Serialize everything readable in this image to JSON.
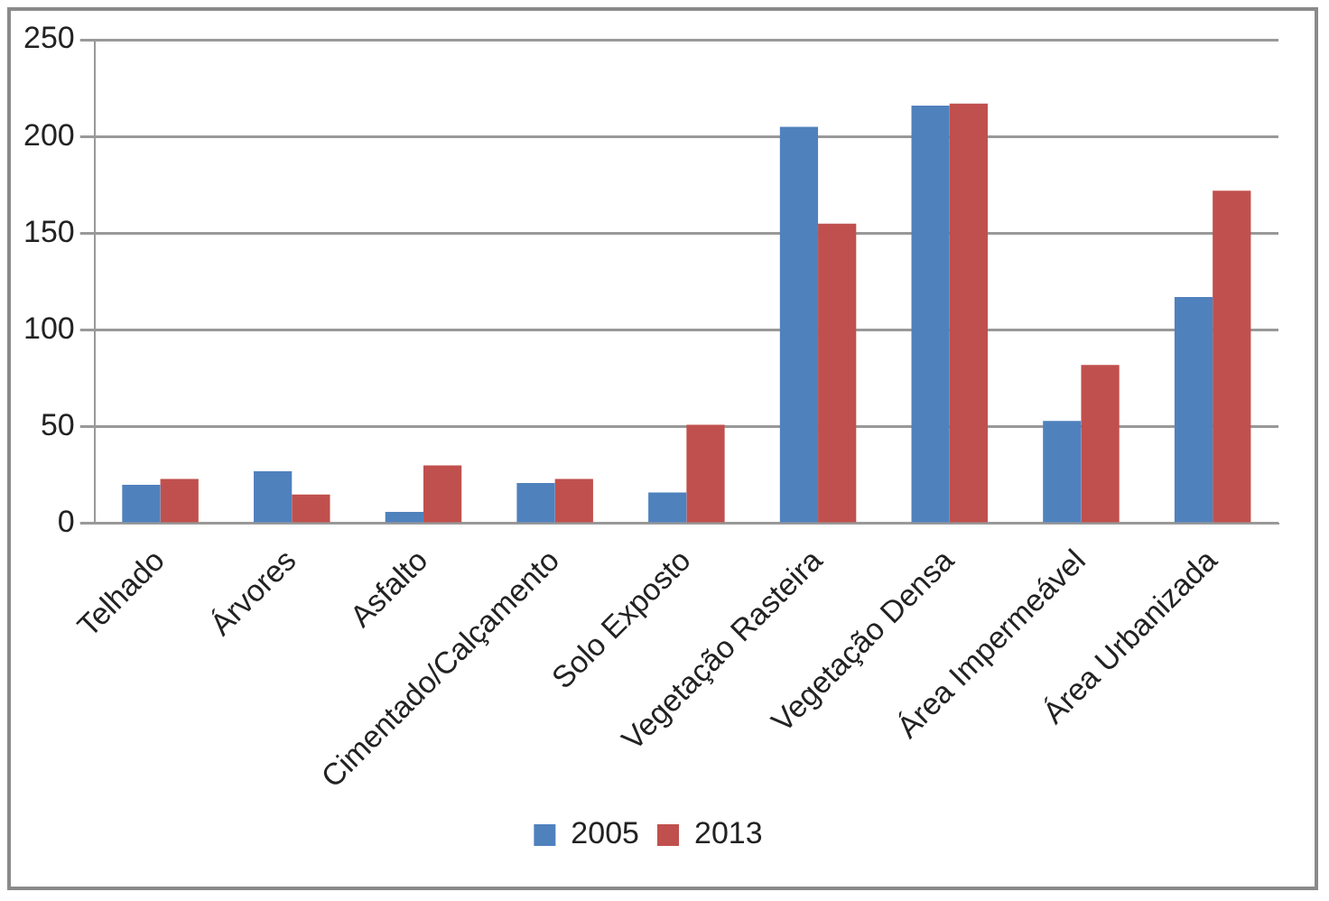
{
  "chart_data": {
    "type": "bar",
    "categories": [
      "Telhado",
      "Árvores",
      "Asfalto",
      "Cimentado/Calçamento",
      "Solo Exposto",
      "Vegetação Rasteira",
      "Vegetação Densa",
      "Área Impermeável",
      "Área Urbanizada"
    ],
    "series": [
      {
        "name": "2005",
        "color": "#4f81bd",
        "values": [
          20,
          27,
          6,
          21,
          16,
          205,
          216,
          53,
          117
        ]
      },
      {
        "name": "2013",
        "color": "#c0504d",
        "values": [
          23,
          15,
          30,
          23,
          51,
          155,
          217,
          82,
          172
        ]
      }
    ],
    "ylim": [
      0,
      250
    ],
    "yticks": [
      0,
      50,
      100,
      150,
      200,
      250
    ],
    "grid": "y",
    "legend": "bottom"
  }
}
